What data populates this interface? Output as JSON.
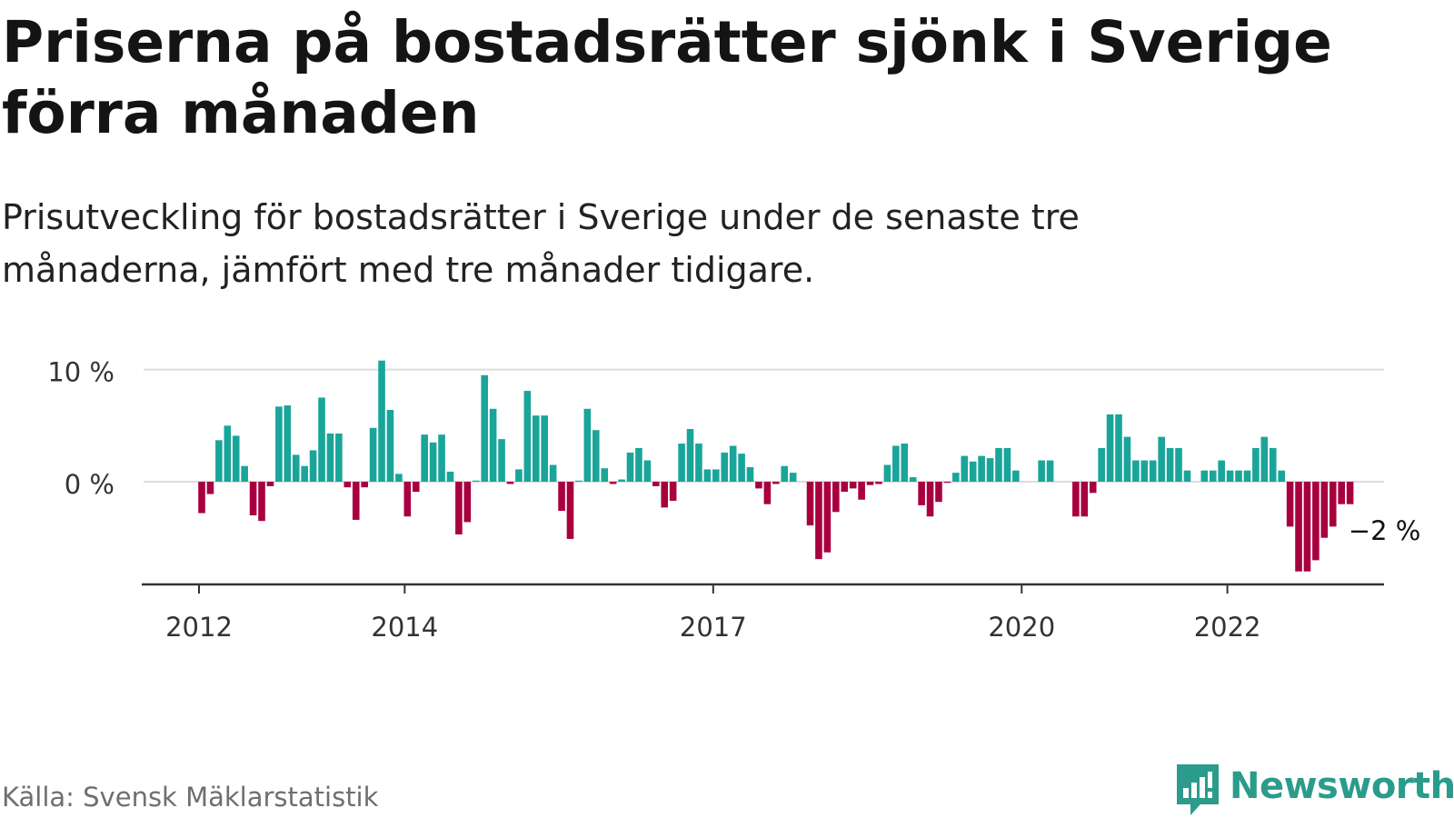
{
  "header": {
    "title": "Priserna på bostadsrätter sjönk i Sverige förra månaden",
    "subtitle": "Prisutveckling för bostadsrätter i Sverige under de senaste tre månaderna, jämfört med tre månader tidigare."
  },
  "footer": {
    "source": "Källa: Svensk Mäklarstatistik",
    "brand": "Newsworthy"
  },
  "colors": {
    "positive": "#1aa59a",
    "negative": "#a8003f",
    "axis": "#333333",
    "grid": "#dddddd",
    "brand": "#2b9c8c"
  },
  "chart_data": {
    "type": "bar",
    "title": "Priserna på bostadsrätter sjönk i Sverige förra månaden",
    "subtitle": "Prisutveckling för bostadsrätter i Sverige under de senaste tre månaderna, jämfört med tre månader tidigare.",
    "xlabel": "",
    "ylabel": "",
    "unit": "%",
    "x_start": "2012-01",
    "frequency": "monthly",
    "x_ticks": [
      "2012",
      "2014",
      "2017",
      "2020",
      "2022"
    ],
    "y_ticks": [
      "0 %",
      "10 %"
    ],
    "ylim": [
      -9.3,
      10.5
    ],
    "grid": true,
    "legend": "none",
    "annotation": "−2 %",
    "values": [
      -2.8,
      -1.1,
      3.7,
      5.0,
      4.1,
      1.4,
      -3.0,
      -3.5,
      -0.4,
      6.7,
      6.8,
      2.4,
      1.4,
      2.8,
      7.5,
      4.3,
      4.3,
      -0.5,
      -3.4,
      -0.5,
      4.8,
      10.8,
      6.4,
      0.7,
      -3.1,
      -0.9,
      4.2,
      3.5,
      4.2,
      0.9,
      -4.7,
      -3.6,
      0.1,
      9.5,
      6.5,
      3.8,
      -0.2,
      1.1,
      8.1,
      5.9,
      5.9,
      1.5,
      -2.6,
      -5.1,
      0.1,
      6.5,
      4.6,
      1.2,
      -0.2,
      0.2,
      2.6,
      3.0,
      1.9,
      -0.4,
      -2.3,
      -1.7,
      3.4,
      4.7,
      3.4,
      1.1,
      1.1,
      2.6,
      3.2,
      2.5,
      1.3,
      -0.6,
      -2.0,
      -0.2,
      1.4,
      0.8,
      0.0,
      -3.9,
      -6.9,
      -6.3,
      -2.7,
      -0.9,
      -0.6,
      -1.6,
      -0.3,
      -0.2,
      1.5,
      3.2,
      3.4,
      0.4,
      -2.1,
      -3.1,
      -1.8,
      -0.1,
      0.8,
      2.3,
      1.8,
      2.3,
      2.1,
      3.0,
      3.0,
      1.0,
      0.0,
      0.0,
      1.9,
      1.9,
      0.0,
      0.0,
      -3.1,
      -3.1,
      -1.0,
      3.0,
      6.0,
      6.0,
      4.0,
      1.9,
      1.9,
      1.9,
      4.0,
      3.0,
      3.0,
      1.0,
      0.0,
      1.0,
      1.0,
      1.9,
      1.0,
      1.0,
      1.0,
      3.0,
      4.0,
      3.0,
      1.0,
      -4.0,
      -8.0,
      -8.0,
      -7.0,
      -5.0,
      -4.0,
      -2.0,
      -2.0
    ]
  }
}
